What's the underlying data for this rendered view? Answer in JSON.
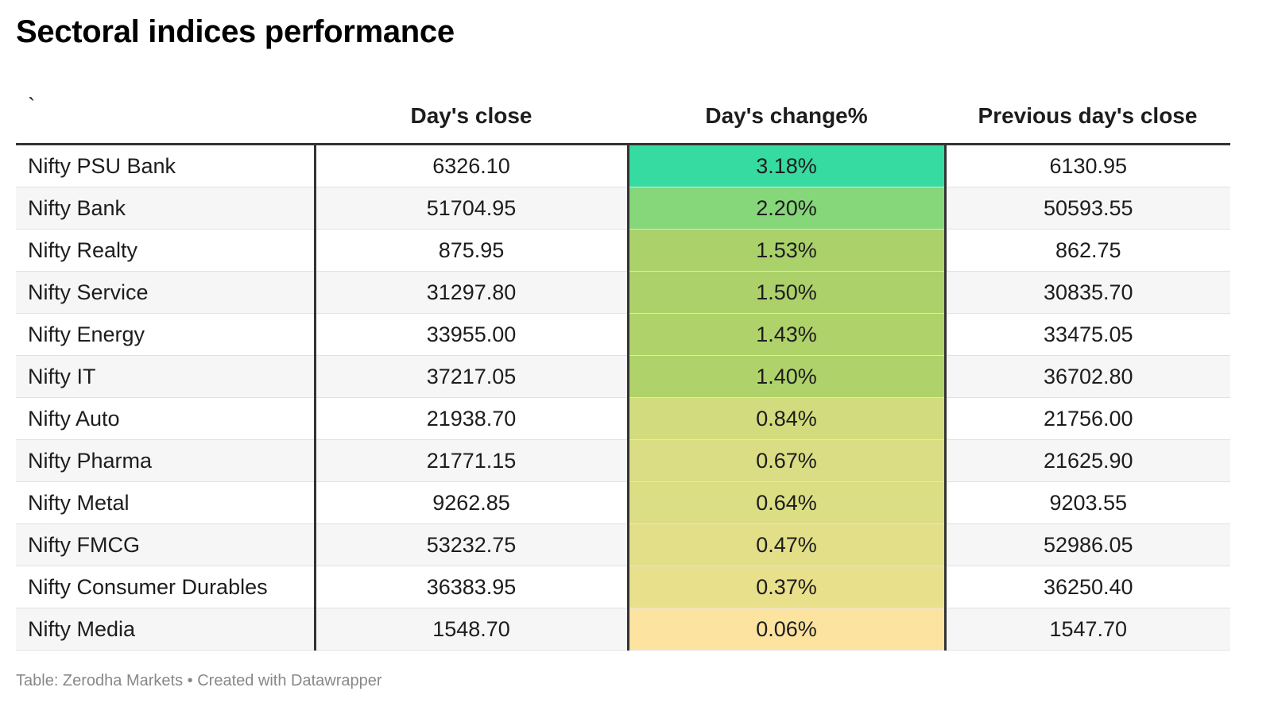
{
  "title": "Sectoral indices performance",
  "footer": "Table: Zerodha Markets • Created with Datawrapper",
  "chart_data": {
    "type": "table",
    "title": "Sectoral indices performance",
    "columns": [
      "`",
      "Day's close",
      "Day's change%",
      "Previous day's close"
    ],
    "rows": [
      {
        "name": "Nifty PSU Bank",
        "close": "6326.10",
        "change": "3.18%",
        "change_value": 3.18,
        "prev": "6130.95",
        "color": "#36dba1"
      },
      {
        "name": "Nifty Bank",
        "close": "51704.95",
        "change": "2.20%",
        "change_value": 2.2,
        "prev": "50593.55",
        "color": "#86d67a"
      },
      {
        "name": "Nifty Realty",
        "close": "875.95",
        "change": "1.53%",
        "change_value": 1.53,
        "prev": "862.75",
        "color": "#aad16a"
      },
      {
        "name": "Nifty Service",
        "close": "31297.80",
        "change": "1.50%",
        "change_value": 1.5,
        "prev": "30835.70",
        "color": "#acd16a"
      },
      {
        "name": "Nifty Energy",
        "close": "33955.00",
        "change": "1.43%",
        "change_value": 1.43,
        "prev": "33475.05",
        "color": "#afd26b"
      },
      {
        "name": "Nifty IT",
        "close": "37217.05",
        "change": "1.40%",
        "change_value": 1.4,
        "prev": "36702.80",
        "color": "#b0d26b"
      },
      {
        "name": "Nifty Auto",
        "close": "21938.70",
        "change": "0.84%",
        "change_value": 0.84,
        "prev": "21756.00",
        "color": "#d2dc7e"
      },
      {
        "name": "Nifty Pharma",
        "close": "21771.15",
        "change": "0.67%",
        "change_value": 0.67,
        "prev": "21625.90",
        "color": "#dadd83"
      },
      {
        "name": "Nifty Metal",
        "close": "9262.85",
        "change": "0.64%",
        "change_value": 0.64,
        "prev": "9203.55",
        "color": "#dbde84"
      },
      {
        "name": "Nifty FMCG",
        "close": "53232.75",
        "change": "0.47%",
        "change_value": 0.47,
        "prev": "52986.05",
        "color": "#e3df88"
      },
      {
        "name": "Nifty Consumer Durables",
        "close": "36383.95",
        "change": "0.37%",
        "change_value": 0.37,
        "prev": "36250.40",
        "color": "#e8e08b"
      },
      {
        "name": "Nifty Media",
        "close": "1548.70",
        "change": "0.06%",
        "change_value": 0.06,
        "prev": "1547.70",
        "color": "#fce3a0"
      }
    ]
  }
}
